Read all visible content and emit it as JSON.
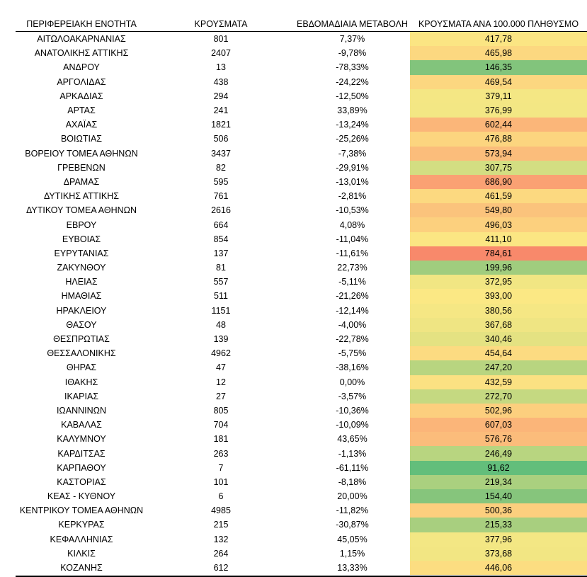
{
  "headers": {
    "region": "ΠΕΡΙΦΕΡΕΙΑΚΗ ΕΝΟΤΗΤΑ",
    "cases": "ΚΡΟΥΣΜΑΤΑ",
    "weekly_change": "ΕΒΔΟΜΑΔΙΑΙΑ ΜΕΤΑΒΟΛΗ",
    "per_100k": "ΚΡΟΥΣΜΑΤΑ ΑΝΑ 100.000 ΠΛΗΘΥΣΜΟ"
  },
  "rows": [
    {
      "region": "ΑΙΤΩΛΟΑΚΑΡΝΑΝΙΑΣ",
      "cases": "801",
      "change": "7,37%",
      "per100k": "417,78",
      "color": "#fbe583"
    },
    {
      "region": "ΑΝΑΤΟΛΙΚΗΣ ΑΤΤΙΚΗΣ",
      "cases": "2407",
      "change": "-9,78%",
      "per100k": "465,98",
      "color": "#fcd880"
    },
    {
      "region": "ΑΝΔΡΟΥ",
      "cases": "13",
      "change": "-78,33%",
      "per100k": "146,35",
      "color": "#82c47c"
    },
    {
      "region": "ΑΡΓΟΛΙΔΑΣ",
      "cases": "438",
      "change": "-24,22%",
      "per100k": "469,54",
      "color": "#fcd780"
    },
    {
      "region": "ΑΡΚΑΔΙΑΣ",
      "cases": "294",
      "change": "-12,50%",
      "per100k": "379,11",
      "color": "#f4e784"
    },
    {
      "region": "ΑΡΤΑΣ",
      "cases": "241",
      "change": "33,89%",
      "per100k": "376,99",
      "color": "#f3e784"
    },
    {
      "region": "ΑΧΑΪΑΣ",
      "cases": "1821",
      "change": "-13,24%",
      "per100k": "602,44",
      "color": "#fbb679"
    },
    {
      "region": "ΒΟΙΩΤΙΑΣ",
      "cases": "506",
      "change": "-25,26%",
      "per100k": "476,88",
      "color": "#fcd57f"
    },
    {
      "region": "ΒΟΡΕΙΟΥ ΤΟΜΕΑ ΑΘΗΝΩΝ",
      "cases": "3437",
      "change": "-7,38%",
      "per100k": "573,94",
      "color": "#fbbd7b"
    },
    {
      "region": "ΓΡΕΒΕΝΩΝ",
      "cases": "82",
      "change": "-29,91%",
      "per100k": "307,75",
      "color": "#d3de82"
    },
    {
      "region": "ΔΡΑΜΑΣ",
      "cases": "595",
      "change": "-13,01%",
      "per100k": "686,90",
      "color": "#faa173"
    },
    {
      "region": "ΔΥΤΙΚΗΣ ΑΤΤΙΚΗΣ",
      "cases": "761",
      "change": "-2,81%",
      "per100k": "461,59",
      "color": "#fcd980"
    },
    {
      "region": "ΔΥΤΙΚΟΥ ΤΟΜΕΑ ΑΘΗΝΩΝ",
      "cases": "2616",
      "change": "-10,53%",
      "per100k": "549,80",
      "color": "#fbc37c"
    },
    {
      "region": "ΕΒΡΟΥ",
      "cases": "664",
      "change": "4,08%",
      "per100k": "496,03",
      "color": "#fcd07e"
    },
    {
      "region": "ΕΥΒΟΙΑΣ",
      "cases": "854",
      "change": "-11,04%",
      "per100k": "411,10",
      "color": "#fbe683"
    },
    {
      "region": "ΕΥΡΥΤΑΝΙΑΣ",
      "cases": "137",
      "change": "-11,61%",
      "per100k": "784,61",
      "color": "#f8896b"
    },
    {
      "region": "ΖΑΚΥΝΘΟΥ",
      "cases": "81",
      "change": "22,73%",
      "per100k": "199,96",
      "color": "#a0cd7e"
    },
    {
      "region": "ΗΛΕΙΑΣ",
      "cases": "557",
      "change": "-5,11%",
      "per100k": "372,95",
      "color": "#f1e683"
    },
    {
      "region": "ΗΜΑΘΙΑΣ",
      "cases": "511",
      "change": "-21,26%",
      "per100k": "393,00",
      "color": "#fbe884"
    },
    {
      "region": "ΗΡΑΚΛΕΙΟΥ",
      "cases": "1151",
      "change": "-12,14%",
      "per100k": "380,56",
      "color": "#f5e784"
    },
    {
      "region": "ΘΑΣΟΥ",
      "cases": "48",
      "change": "-4,00%",
      "per100k": "367,68",
      "color": "#efe583"
    },
    {
      "region": "ΘΕΣΠΡΩΤΙΑΣ",
      "cases": "139",
      "change": "-22,78%",
      "per100k": "340,46",
      "color": "#e4e282"
    },
    {
      "region": "ΘΕΣΣΑΛΟΝΙΚΗΣ",
      "cases": "4962",
      "change": "-5,75%",
      "per100k": "454,64",
      "color": "#fcdb81"
    },
    {
      "region": "ΘΗΡΑΣ",
      "cases": "47",
      "change": "-38,16%",
      "per100k": "247,20",
      "color": "#b8d580"
    },
    {
      "region": "ΙΘΑΚΗΣ",
      "cases": "12",
      "change": "0,00%",
      "per100k": "432,59",
      "color": "#fbe182"
    },
    {
      "region": "ΙΚΑΡΙΑΣ",
      "cases": "27",
      "change": "-3,57%",
      "per100k": "272,70",
      "color": "#c5d981"
    },
    {
      "region": "ΙΩΑΝΝΙΝΩΝ",
      "cases": "805",
      "change": "-10,36%",
      "per100k": "502,96",
      "color": "#fccf7e"
    },
    {
      "region": "ΚΑΒΑΛΑΣ",
      "cases": "704",
      "change": "-10,09%",
      "per100k": "607,03",
      "color": "#fbb579"
    },
    {
      "region": "ΚΑΛΥΜΝΟΥ",
      "cases": "181",
      "change": "43,65%",
      "per100k": "576,76",
      "color": "#fbbc7b"
    },
    {
      "region": "ΚΑΡΔΙΤΣΑΣ",
      "cases": "263",
      "change": "-1,13%",
      "per100k": "246,49",
      "color": "#b8d580"
    },
    {
      "region": "ΚΑΡΠΑΘΟΥ",
      "cases": "7",
      "change": "-61,11%",
      "per100k": "91,62",
      "color": "#63be7b"
    },
    {
      "region": "ΚΑΣΤΟΡΙΑΣ",
      "cases": "101",
      "change": "-8,18%",
      "per100k": "219,34",
      "color": "#aad07f"
    },
    {
      "region": "ΚΕΑΣ - ΚΥΘΝΟΥ",
      "cases": "6",
      "change": "20,00%",
      "per100k": "154,40",
      "color": "#86c57c"
    },
    {
      "region": "ΚΕΝΤΡΙΚΟΥ ΤΟΜΕΑ ΑΘΗΝΩΝ",
      "cases": "4985",
      "change": "-11,82%",
      "per100k": "500,36",
      "color": "#fccf7e"
    },
    {
      "region": "ΚΕΡΚΥΡΑΣ",
      "cases": "215",
      "change": "-30,87%",
      "per100k": "215,33",
      "color": "#a8cf7f"
    },
    {
      "region": "ΚΕΦΑΛΛΗΝΙΑΣ",
      "cases": "132",
      "change": "45,05%",
      "per100k": "377,96",
      "color": "#f3e784"
    },
    {
      "region": "ΚΙΛΚΙΣ",
      "cases": "264",
      "change": "1,15%",
      "per100k": "373,68",
      "color": "#f2e683"
    },
    {
      "region": "ΚΟΖΑΝΗΣ",
      "cases": "612",
      "change": "13,33%",
      "per100k": "446,06",
      "color": "#fcdd81"
    }
  ]
}
